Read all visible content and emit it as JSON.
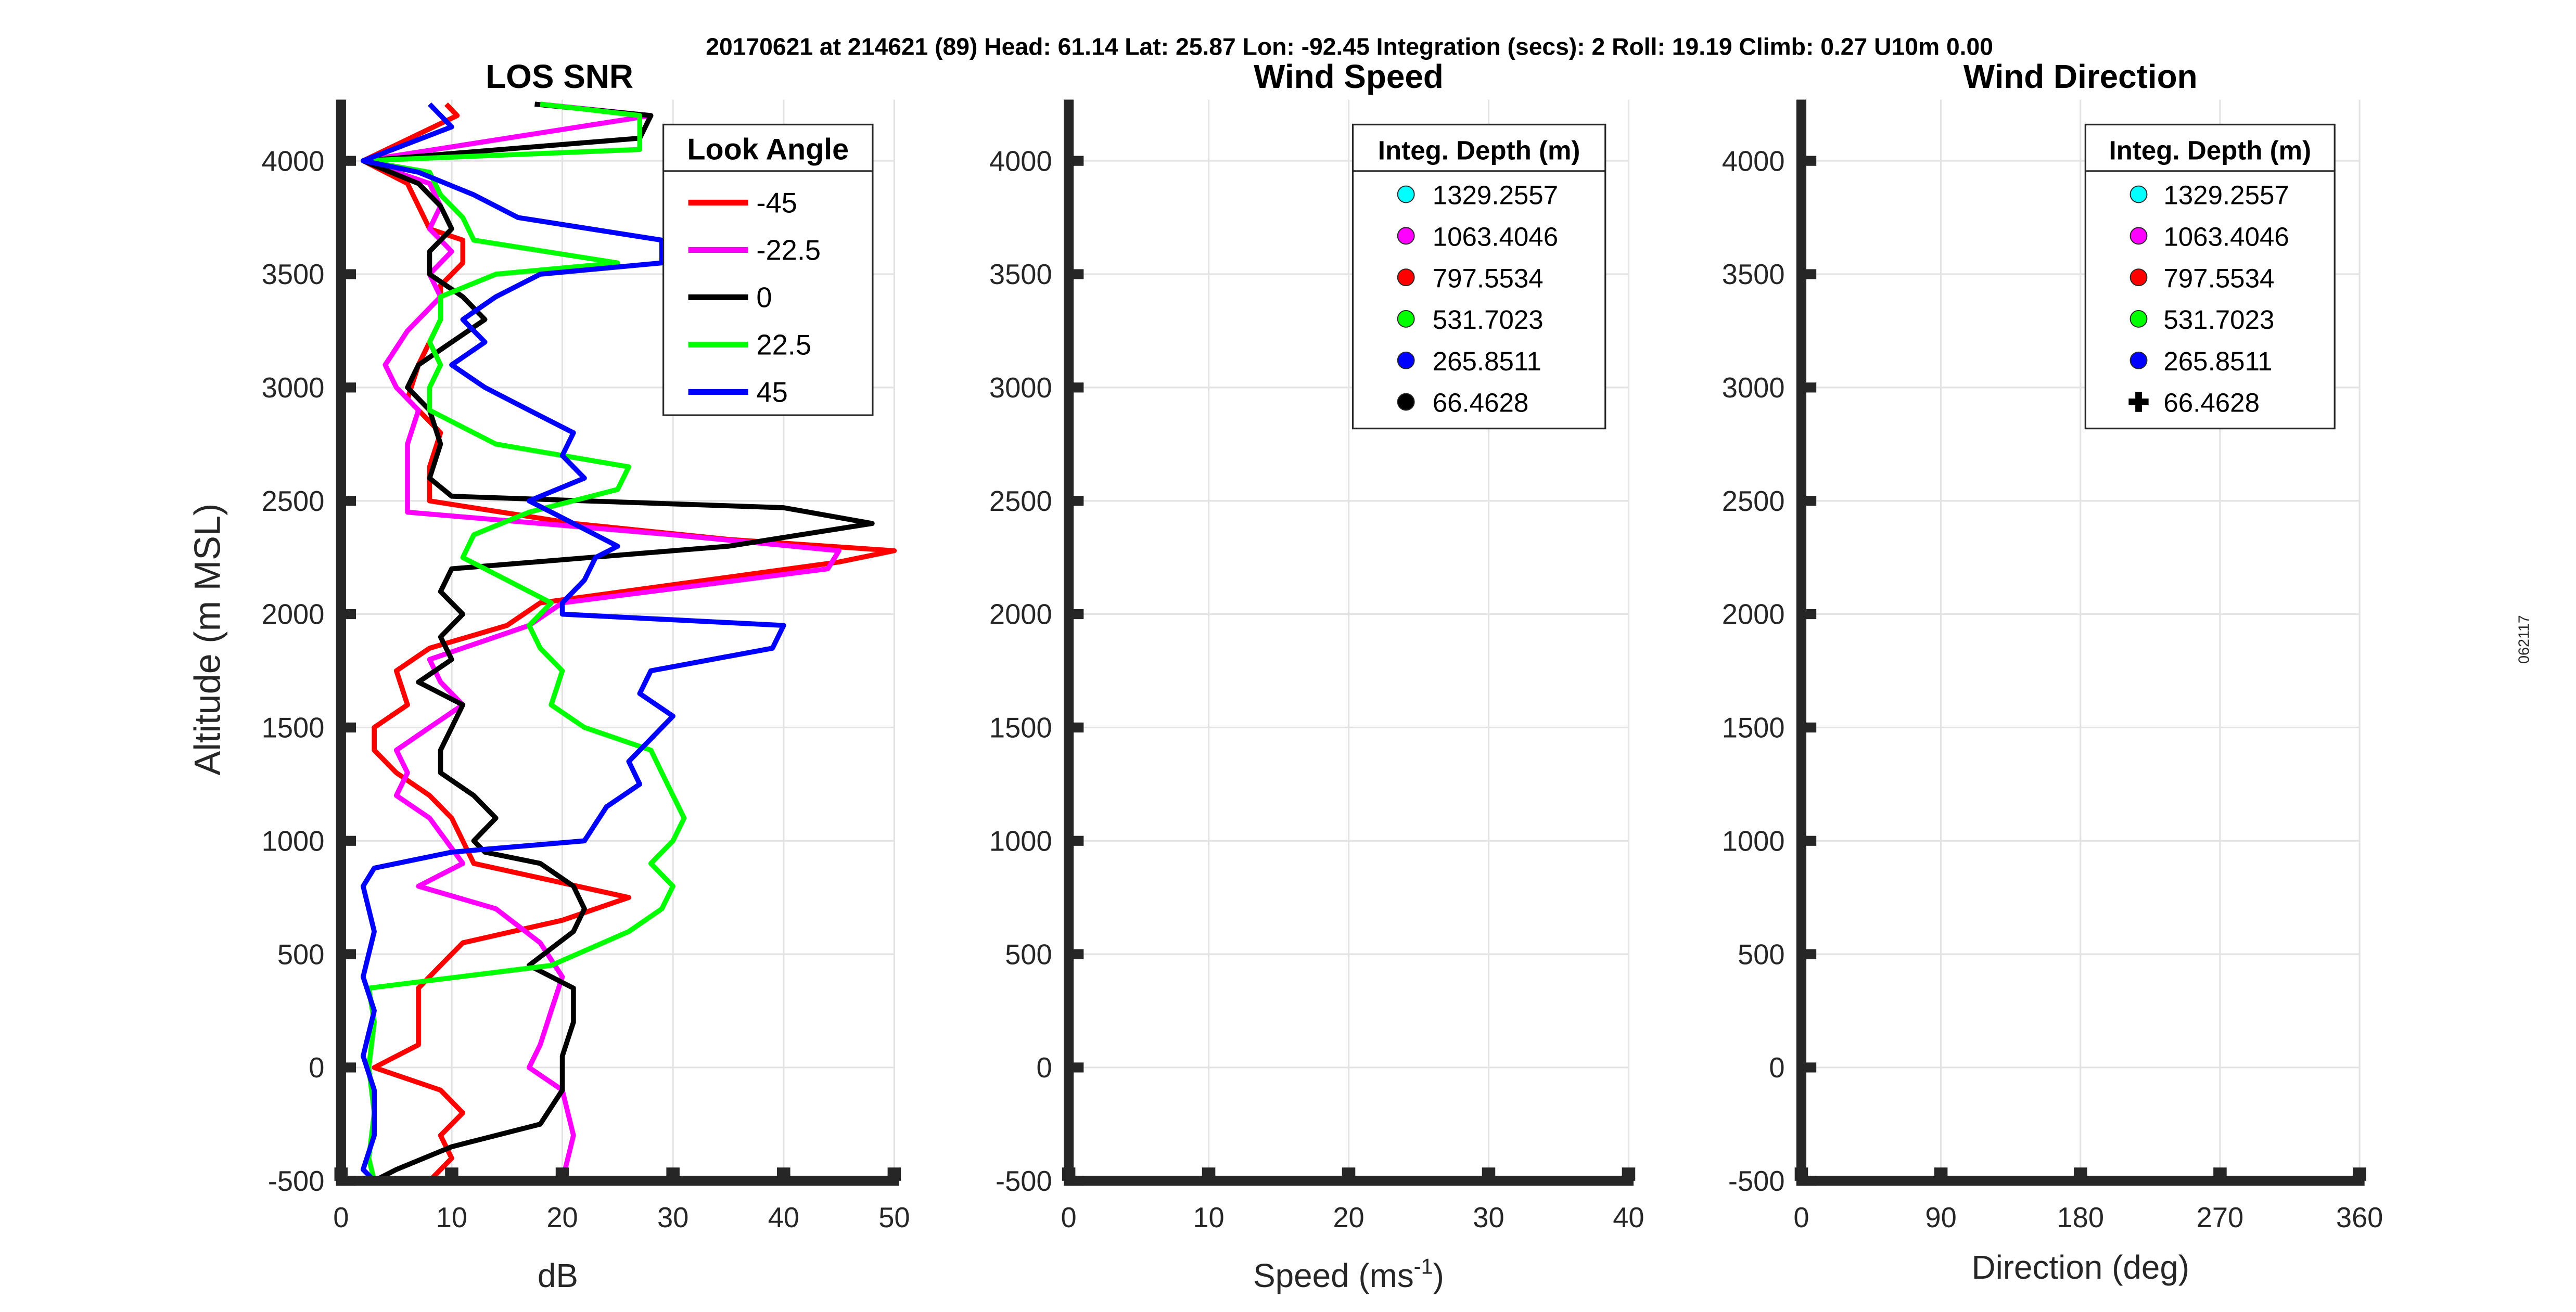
{
  "header": "20170621 at 214621 (89)  Head: 61.14  Lat: 25.87  Lon: -92.45  Integration (secs): 2  Roll: 19.19  Climb: 0.27  U10m 0.00",
  "side_label": "062117",
  "chart_data": [
    {
      "type": "line",
      "title": "LOS SNR",
      "xlabel": "dB",
      "ylabel": "Altitude (m MSL)",
      "xlim": [
        0,
        50
      ],
      "ylim": [
        -500,
        4270
      ],
      "xticks": [
        "0",
        "10",
        "20",
        "30",
        "40",
        "50"
      ],
      "xtick_values": [
        0,
        10,
        20,
        30,
        40,
        50
      ],
      "yticks": [
        "-500",
        "0",
        "500",
        "1000",
        "1500",
        "2000",
        "2500",
        "3000",
        "3500",
        "4000"
      ],
      "ytick_values": [
        -500,
        0,
        500,
        1000,
        1500,
        2000,
        2500,
        3000,
        3500,
        4000
      ],
      "grid": true,
      "legend": {
        "title": "Look Angle",
        "placement": "top-right"
      },
      "series": [
        {
          "name": "-45",
          "color": "#ff0000",
          "alt": [
            4250,
            4200,
            4000,
            3900,
            3700,
            3650,
            3550,
            3450,
            3300,
            3100,
            2950,
            2800,
            2650,
            2500,
            2400,
            2330,
            2280,
            2230,
            2130,
            2050,
            1950,
            1850,
            1750,
            1600,
            1500,
            1400,
            1300,
            1200,
            1100,
            1000,
            900,
            750,
            650,
            550,
            450,
            350,
            250,
            100,
            0,
            -100,
            -200,
            -300,
            -400,
            -500
          ],
          "db": [
            9.5,
            10.5,
            2,
            6,
            8,
            11,
            11,
            9,
            9,
            7,
            6,
            9,
            8,
            8,
            21,
            35,
            50,
            45,
            30,
            18,
            15,
            8,
            5,
            6,
            3,
            3,
            5,
            8,
            10,
            11,
            12,
            26,
            20,
            11,
            9,
            7,
            7,
            7,
            3,
            9,
            11,
            9,
            10,
            8
          ]
        },
        {
          "name": "-22.5",
          "color": "#ff00ff",
          "alt": [
            4250,
            4200,
            4000,
            3900,
            3800,
            3700,
            3600,
            3500,
            3400,
            3250,
            3100,
            3000,
            2900,
            2750,
            2600,
            2450,
            2350,
            2280,
            2200,
            2050,
            1950,
            1800,
            1700,
            1600,
            1500,
            1400,
            1300,
            1200,
            1100,
            900,
            800,
            700,
            550,
            400,
            250,
            100,
            0,
            -100,
            -300,
            -500
          ],
          "db": [
            18,
            28,
            2,
            8,
            9,
            8,
            10,
            8,
            9,
            6,
            4,
            5,
            7,
            6,
            6,
            6,
            30,
            45,
            44,
            20,
            17,
            8,
            9,
            11,
            8,
            5,
            6,
            5,
            8,
            11,
            7,
            14,
            18,
            20,
            19,
            18,
            17,
            20,
            21,
            20
          ]
        },
        {
          "name": "0",
          "color": "#000000",
          "alt": [
            4250,
            4200,
            4100,
            4000,
            3900,
            3800,
            3700,
            3600,
            3500,
            3400,
            3300,
            3200,
            3100,
            3000,
            2900,
            2750,
            2600,
            2520,
            2470,
            2400,
            2300,
            2200,
            2100,
            2000,
            1900,
            1800,
            1700,
            1600,
            1400,
            1300,
            1200,
            1100,
            1000,
            950,
            900,
            800,
            700,
            600,
            450,
            350,
            200,
            50,
            -100,
            -250,
            -350,
            -450,
            -500
          ],
          "db": [
            17.5,
            28,
            27,
            2,
            7,
            9,
            10,
            8,
            8,
            11,
            13,
            10,
            7,
            6,
            8,
            9,
            8,
            10,
            40,
            48,
            35,
            10,
            9,
            11,
            9,
            10,
            7,
            11,
            9,
            9,
            12,
            14,
            12,
            13,
            18,
            21,
            22,
            21,
            17,
            21,
            21,
            20,
            20,
            18,
            10,
            5,
            3
          ]
        },
        {
          "name": "22.5",
          "color": "#00ff00",
          "alt": [
            4250,
            4200,
            4050,
            4000,
            3950,
            3850,
            3750,
            3650,
            3550,
            3500,
            3400,
            3300,
            3200,
            3100,
            3000,
            2900,
            2750,
            2650,
            2550,
            2450,
            2350,
            2250,
            2150,
            2050,
            1950,
            1850,
            1750,
            1600,
            1500,
            1400,
            1300,
            1200,
            1100,
            1000,
            900,
            800,
            700,
            600,
            450,
            350,
            200,
            0,
            -200,
            -400,
            -500
          ],
          "db": [
            18,
            27,
            27,
            2,
            8,
            9,
            11,
            12,
            25,
            14,
            9,
            9,
            8,
            9,
            8,
            8,
            14,
            26,
            25,
            17,
            12,
            11,
            15,
            19,
            17,
            18,
            20,
            19,
            22,
            28,
            29,
            30,
            31,
            30,
            28,
            30,
            29,
            26,
            19,
            2.5,
            3,
            2.5,
            3,
            2.5,
            3
          ]
        },
        {
          "name": "45",
          "color": "#0000ff",
          "alt": [
            4250,
            4150,
            4000,
            3950,
            3850,
            3750,
            3650,
            3550,
            3500,
            3400,
            3300,
            3200,
            3100,
            3000,
            2900,
            2800,
            2700,
            2600,
            2500,
            2400,
            2300,
            2250,
            2150,
            2050,
            2000,
            1950,
            1850,
            1750,
            1650,
            1550,
            1450,
            1350,
            1250,
            1150,
            1000,
            950,
            880,
            800,
            600,
            400,
            250,
            50,
            -100,
            -300,
            -450,
            -500
          ],
          "db": [
            8,
            10,
            2,
            7,
            12,
            16,
            29,
            29,
            18,
            14,
            11,
            13,
            10,
            13,
            17,
            21,
            20,
            22,
            17,
            21,
            25,
            23,
            22,
            20,
            20,
            40,
            39,
            28,
            27,
            30,
            28,
            26,
            27,
            24,
            22,
            10,
            3,
            2,
            3,
            2,
            3,
            2,
            3,
            3,
            2,
            3
          ]
        }
      ]
    },
    {
      "type": "scatter",
      "title": "Wind Speed",
      "xlabel": "Speed (ms",
      "xlabel_sup": "-1",
      "xlabel_end": ")",
      "xlim": [
        0,
        40
      ],
      "ylim": [
        -500,
        4270
      ],
      "xticks": [
        "0",
        "10",
        "20",
        "30",
        "40"
      ],
      "xtick_values": [
        0,
        10,
        20,
        30,
        40
      ],
      "yticks": [
        "-500",
        "0",
        "500",
        "1000",
        "1500",
        "2000",
        "2500",
        "3000",
        "3500",
        "4000"
      ],
      "ytick_values": [
        -500,
        0,
        500,
        1000,
        1500,
        2000,
        2500,
        3000,
        3500,
        4000
      ],
      "grid": true,
      "legend": {
        "title": "Integ. Depth (m)",
        "placement": "top-right"
      },
      "series": [
        {
          "name": "1329.2557",
          "color": "#00ffff",
          "marker": "circle"
        },
        {
          "name": "1063.4046",
          "color": "#ff00ff",
          "marker": "circle"
        },
        {
          "name": "797.5534",
          "color": "#ff0000",
          "marker": "circle"
        },
        {
          "name": "531.7023",
          "color": "#00ff00",
          "marker": "circle"
        },
        {
          "name": "265.8511",
          "color": "#0000ff",
          "marker": "circle"
        },
        {
          "name": "66.4628",
          "color": "#000000",
          "marker": "circle"
        }
      ]
    },
    {
      "type": "scatter",
      "title": "Wind Direction",
      "xlabel": "Direction (deg)",
      "xlim": [
        0,
        360
      ],
      "ylim": [
        -500,
        4270
      ],
      "xticks": [
        "0",
        "90",
        "180",
        "270",
        "360"
      ],
      "xtick_values": [
        0,
        90,
        180,
        270,
        360
      ],
      "yticks": [
        "-500",
        "0",
        "500",
        "1000",
        "1500",
        "2000",
        "2500",
        "3000",
        "3500",
        "4000"
      ],
      "ytick_values": [
        -500,
        0,
        500,
        1000,
        1500,
        2000,
        2500,
        3000,
        3500,
        4000
      ],
      "grid": true,
      "legend": {
        "title": "Integ. Depth (m)",
        "placement": "top-right"
      },
      "series": [
        {
          "name": "1329.2557",
          "color": "#00ffff",
          "marker": "circle"
        },
        {
          "name": "1063.4046",
          "color": "#ff00ff",
          "marker": "circle"
        },
        {
          "name": "797.5534",
          "color": "#ff0000",
          "marker": "circle"
        },
        {
          "name": "531.7023",
          "color": "#00ff00",
          "marker": "circle"
        },
        {
          "name": "265.8511",
          "color": "#0000ff",
          "marker": "circle"
        },
        {
          "name": "66.4628",
          "color": "#000000",
          "marker": "plus"
        }
      ]
    }
  ]
}
